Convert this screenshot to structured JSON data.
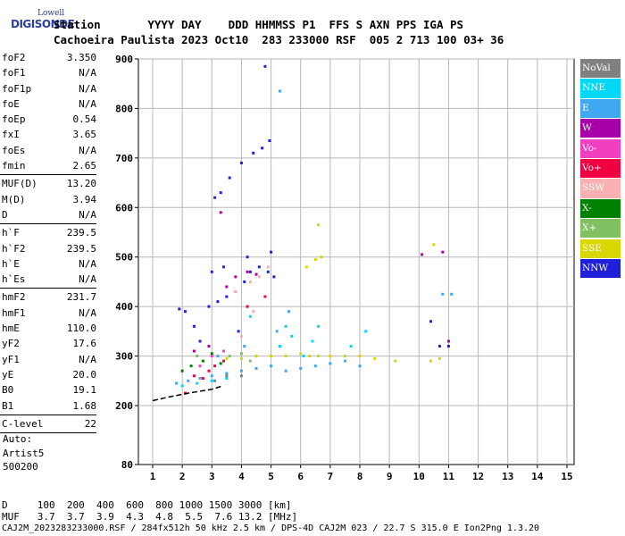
{
  "logo": {
    "line1": "Lowell",
    "line2": "DIGISONDE"
  },
  "header": {
    "row1": "Station       YYYY DAY    DDD HHMMSS P1  FFS S AXN PPS IGA PS",
    "row2": "Cachoeira Paulista 2023 Oct10  283 233000 RSF  005 2 713 100 03+ 36"
  },
  "params": [
    {
      "name": "foF2",
      "value": "3.350"
    },
    {
      "name": "foF1",
      "value": "N/A"
    },
    {
      "name": "foF1p",
      "value": "N/A"
    },
    {
      "name": "foE",
      "value": "N/A"
    },
    {
      "name": "foEp",
      "value": "0.54"
    },
    {
      "name": "fxI",
      "value": "3.65"
    },
    {
      "name": "foEs",
      "value": "N/A"
    },
    {
      "name": "fmin",
      "value": "2.65"
    },
    {
      "sep": true
    },
    {
      "name": "MUF(D)",
      "value": "13.20"
    },
    {
      "name": "M(D)",
      "value": "3.94"
    },
    {
      "name": "D",
      "value": "N/A"
    },
    {
      "sep": true
    },
    {
      "name": "h`F",
      "value": "239.5"
    },
    {
      "name": "h`F2",
      "value": "239.5"
    },
    {
      "name": "h`E",
      "value": "N/A"
    },
    {
      "name": "h`Es",
      "value": "N/A"
    },
    {
      "sep": true
    },
    {
      "name": "hmF2",
      "value": "231.7"
    },
    {
      "name": "hmF1",
      "value": "N/A"
    },
    {
      "name": "hmE",
      "value": "110.0"
    },
    {
      "name": "yF2",
      "value": "17.6"
    },
    {
      "name": "yF1",
      "value": "N/A"
    },
    {
      "name": "yE",
      "value": "20.0"
    },
    {
      "name": "B0",
      "value": "19.1"
    },
    {
      "name": "B1",
      "value": "1.68"
    },
    {
      "sep": true
    },
    {
      "name": "C-level",
      "value": "22"
    },
    {
      "sep": true
    }
  ],
  "auto": {
    "line1": "Auto:",
    "line2": "Artist5",
    "line3": "500200"
  },
  "legend": [
    {
      "label": "NoVal",
      "color": "#808080"
    },
    {
      "label": "NNE",
      "color": "#00d8f8"
    },
    {
      "label": "E",
      "color": "#40a8f0"
    },
    {
      "label": "W",
      "color": "#a800a8"
    },
    {
      "label": "Vo-",
      "color": "#f040c0"
    },
    {
      "label": "Vo+",
      "color": "#f00040"
    },
    {
      "label": "SSW",
      "color": "#f8b0b0"
    },
    {
      "label": "X-",
      "color": "#008000"
    },
    {
      "label": "X+",
      "color": "#80c060"
    },
    {
      "label": "SSE",
      "color": "#d8d800"
    },
    {
      "label": "NNW",
      "color": "#2020d8"
    }
  ],
  "footer": {
    "line1": "D     100  200  400  600  800 1000 1500 3000 [km]",
    "line2": "MUF   3.7  3.7  3.9  4.3  4.8  5.5  7.6 13.2 [MHz]",
    "line3": "CAJ2M_2023283233000.RSF / 284fx512h 50 kHz 2.5 km / DPS-4D CAJ2M 023 / 22.7 S 315.0 E Ion2Png 1.3.20"
  },
  "chart_data": {
    "type": "scatter",
    "x_ticks": [
      "1",
      "2",
      "3",
      "4",
      "5",
      "6",
      "7",
      "8",
      "9",
      "10",
      "11",
      "12",
      "13",
      "14",
      "15"
    ],
    "y_ticks": [
      "80",
      "200",
      "300",
      "400",
      "500",
      "600",
      "700",
      "800",
      "900"
    ],
    "xlim": [
      1,
      15
    ],
    "ylim": [
      80,
      900
    ],
    "grid": true,
    "legend_position": "right",
    "series": [
      {
        "name": "NNW",
        "color": "#2020d8",
        "points": [
          [
            2.9,
            400
          ],
          [
            3.2,
            410
          ],
          [
            3.5,
            420
          ],
          [
            3.8,
            430
          ],
          [
            4.1,
            450
          ],
          [
            4.3,
            470
          ],
          [
            4.6,
            480
          ],
          [
            4.9,
            470
          ],
          [
            5.1,
            460
          ],
          [
            3.3,
            630
          ],
          [
            3.1,
            620
          ],
          [
            3.6,
            660
          ],
          [
            4.0,
            690
          ],
          [
            4.4,
            710
          ],
          [
            4.7,
            720
          ],
          [
            4.95,
            735
          ],
          [
            4.8,
            885
          ],
          [
            1.9,
            395
          ],
          [
            2.1,
            390
          ],
          [
            2.4,
            360
          ],
          [
            3.0,
            470
          ],
          [
            3.4,
            480
          ],
          [
            4.2,
            500
          ],
          [
            5.0,
            510
          ],
          [
            10.4,
            370
          ],
          [
            10.7,
            320
          ],
          [
            11.0,
            320
          ],
          [
            2.6,
            330
          ],
          [
            3.9,
            350
          ]
        ]
      },
      {
        "name": "E",
        "color": "#40a8f0",
        "points": [
          [
            1.8,
            245
          ],
          [
            2.2,
            250
          ],
          [
            2.6,
            255
          ],
          [
            3.0,
            260
          ],
          [
            3.5,
            265
          ],
          [
            4.0,
            270
          ],
          [
            4.5,
            275
          ],
          [
            5.0,
            280
          ],
          [
            5.5,
            270
          ],
          [
            6.0,
            275
          ],
          [
            6.5,
            280
          ],
          [
            7.0,
            285
          ],
          [
            7.5,
            290
          ],
          [
            8.0,
            280
          ],
          [
            3.2,
            300
          ],
          [
            4.1,
            320
          ],
          [
            5.2,
            350
          ],
          [
            5.6,
            390
          ],
          [
            10.8,
            425
          ],
          [
            11.1,
            425
          ],
          [
            5.3,
            835
          ]
        ]
      },
      {
        "name": "NNE",
        "color": "#00d8f8",
        "points": [
          [
            2.0,
            240
          ],
          [
            2.5,
            245
          ],
          [
            3.0,
            250
          ],
          [
            3.5,
            255
          ],
          [
            4.5,
            300
          ],
          [
            5.3,
            320
          ],
          [
            5.7,
            340
          ],
          [
            6.1,
            300
          ],
          [
            6.4,
            330
          ],
          [
            6.6,
            360
          ],
          [
            7.7,
            320
          ],
          [
            8.2,
            350
          ],
          [
            4.3,
            380
          ],
          [
            5.5,
            360
          ]
        ]
      },
      {
        "name": "SSE",
        "color": "#d8d800",
        "points": [
          [
            3.5,
            295
          ],
          [
            4.0,
            295
          ],
          [
            4.5,
            300
          ],
          [
            5.0,
            300
          ],
          [
            5.5,
            300
          ],
          [
            6.0,
            305
          ],
          [
            6.3,
            300
          ],
          [
            6.6,
            300
          ],
          [
            7.0,
            300
          ],
          [
            7.5,
            300
          ],
          [
            8.0,
            300
          ],
          [
            8.5,
            295
          ],
          [
            9.2,
            290
          ],
          [
            6.2,
            480
          ],
          [
            6.5,
            495
          ],
          [
            6.7,
            500
          ],
          [
            10.4,
            290
          ],
          [
            10.7,
            295
          ],
          [
            6.6,
            565
          ],
          [
            10.5,
            525
          ]
        ]
      },
      {
        "name": "W",
        "color": "#a800a8",
        "points": [
          [
            3.8,
            460
          ],
          [
            4.2,
            470
          ],
          [
            4.5,
            465
          ],
          [
            3.5,
            440
          ],
          [
            2.4,
            310
          ],
          [
            2.9,
            320
          ],
          [
            3.3,
            590
          ],
          [
            11.0,
            330
          ],
          [
            10.1,
            505
          ],
          [
            10.8,
            510
          ]
        ]
      },
      {
        "name": "Vo+",
        "color": "#f00040",
        "points": [
          [
            2.7,
            255
          ],
          [
            2.9,
            270
          ],
          [
            3.1,
            280
          ],
          [
            2.4,
            260
          ],
          [
            2.1,
            225
          ],
          [
            3.4,
            290
          ],
          [
            4.2,
            400
          ],
          [
            4.8,
            420
          ]
        ]
      },
      {
        "name": "SSW",
        "color": "#f8b0b0",
        "points": [
          [
            4.3,
            450
          ],
          [
            4.6,
            460
          ],
          [
            4.9,
            480
          ],
          [
            3.8,
            430
          ],
          [
            4.0,
            340
          ],
          [
            4.4,
            390
          ]
        ]
      },
      {
        "name": "X-",
        "color": "#008000",
        "points": [
          [
            2.3,
            280
          ],
          [
            2.7,
            290
          ],
          [
            3.0,
            305
          ],
          [
            3.3,
            285
          ],
          [
            2.0,
            270
          ]
        ]
      },
      {
        "name": "X+",
        "color": "#80c060",
        "points": [
          [
            3.6,
            300
          ],
          [
            4.0,
            305
          ],
          [
            4.3,
            290
          ],
          [
            2.5,
            300
          ]
        ]
      },
      {
        "name": "Vo-",
        "color": "#f040c0",
        "points": [
          [
            3.0,
            300
          ],
          [
            3.4,
            310
          ],
          [
            2.6,
            280
          ]
        ]
      },
      {
        "name": "NoVal",
        "color": "#808080",
        "points": [
          [
            3.1,
            250
          ],
          [
            3.5,
            260
          ],
          [
            4.0,
            260
          ]
        ]
      }
    ],
    "profile_line": {
      "color": "#000000",
      "points": [
        [
          1.0,
          210
        ],
        [
          1.6,
          218
        ],
        [
          2.2,
          225
        ],
        [
          2.7,
          230
        ],
        [
          3.0,
          233
        ],
        [
          3.35,
          239.5
        ]
      ]
    }
  }
}
